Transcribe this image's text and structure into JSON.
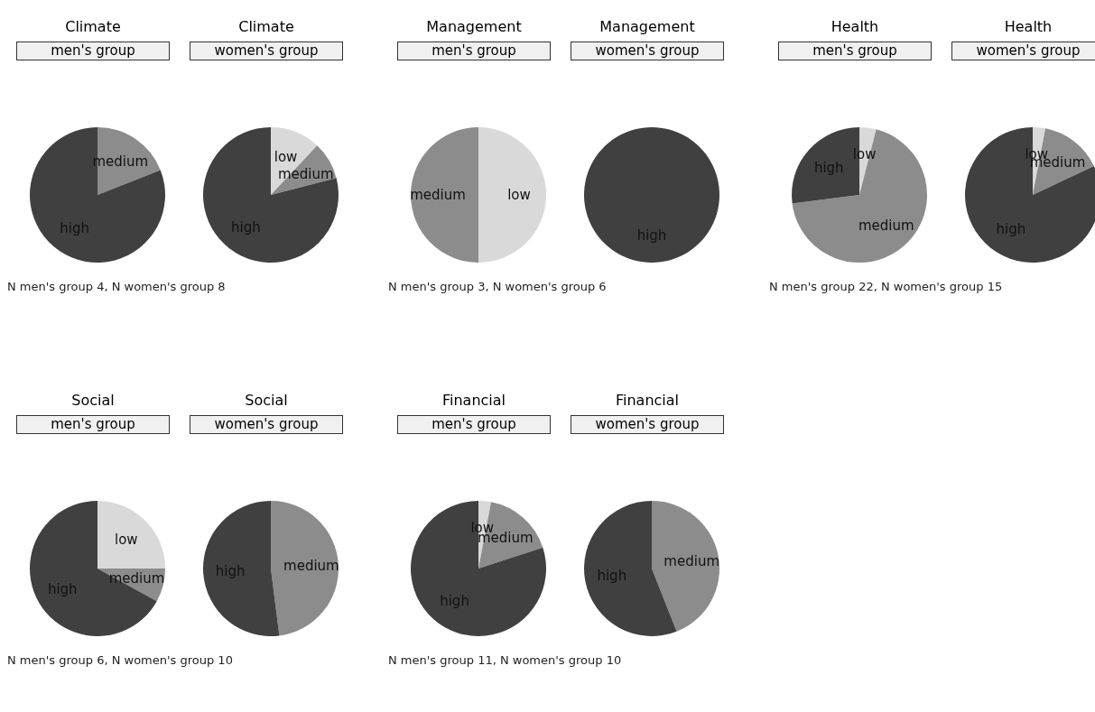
{
  "chart_data": [
    {
      "type": "pie",
      "title": "Climate",
      "subtitle": "men's group",
      "categories": [
        "medium",
        "high"
      ],
      "values": [
        19,
        81
      ],
      "colors": [
        "#8c8c8c",
        "#404040"
      ],
      "annotations": [
        "N men's group 4, N women's group 8"
      ]
    },
    {
      "type": "pie",
      "title": "Climate",
      "subtitle": "women's group",
      "categories": [
        "low",
        "medium",
        "high"
      ],
      "values": [
        12,
        9,
        79
      ],
      "colors": [
        "#d9d9d9",
        "#8c8c8c",
        "#404040"
      ]
    },
    {
      "type": "pie",
      "title": "Management",
      "subtitle": "men's group",
      "categories": [
        "low",
        "medium"
      ],
      "values": [
        50,
        50
      ],
      "colors": [
        "#d9d9d9",
        "#8c8c8c"
      ],
      "annotations": [
        "N men's group 3, N women's group 6"
      ]
    },
    {
      "type": "pie",
      "title": "Management",
      "subtitle": "women's group",
      "categories": [
        "high"
      ],
      "values": [
        100
      ],
      "colors": [
        "#404040"
      ]
    },
    {
      "type": "pie",
      "title": "Health",
      "subtitle": "men's group",
      "categories": [
        "low",
        "medium",
        "high"
      ],
      "values": [
        4,
        69,
        27
      ],
      "colors": [
        "#d9d9d9",
        "#8c8c8c",
        "#404040"
      ],
      "annotations": [
        "N men's group 22, N women's group 15"
      ]
    },
    {
      "type": "pie",
      "title": "Health",
      "subtitle": "women's group",
      "categories": [
        "low",
        "medium",
        "high"
      ],
      "values": [
        3,
        15,
        82
      ],
      "colors": [
        "#d9d9d9",
        "#8c8c8c",
        "#404040"
      ]
    },
    {
      "type": "pie",
      "title": "Social",
      "subtitle": "men's group",
      "categories": [
        "low",
        "medium",
        "high"
      ],
      "values": [
        25,
        8,
        67
      ],
      "colors": [
        "#d9d9d9",
        "#8c8c8c",
        "#404040"
      ],
      "annotations": [
        "N men's group 6, N women's group 10"
      ]
    },
    {
      "type": "pie",
      "title": "Social",
      "subtitle": "women's group",
      "categories": [
        "medium",
        "high"
      ],
      "values": [
        48,
        52
      ],
      "colors": [
        "#8c8c8c",
        "#404040"
      ]
    },
    {
      "type": "pie",
      "title": "Financial",
      "subtitle": "men's group",
      "categories": [
        "low",
        "medium",
        "high"
      ],
      "values": [
        3,
        17,
        80
      ],
      "colors": [
        "#d9d9d9",
        "#8c8c8c",
        "#404040"
      ],
      "annotations": [
        "N men's group 11, N women's group 10"
      ]
    },
    {
      "type": "pie",
      "title": "Financial",
      "subtitle": "women's group",
      "categories": [
        "medium",
        "high"
      ],
      "values": [
        44,
        56
      ],
      "colors": [
        "#8c8c8c",
        "#404040"
      ]
    }
  ]
}
